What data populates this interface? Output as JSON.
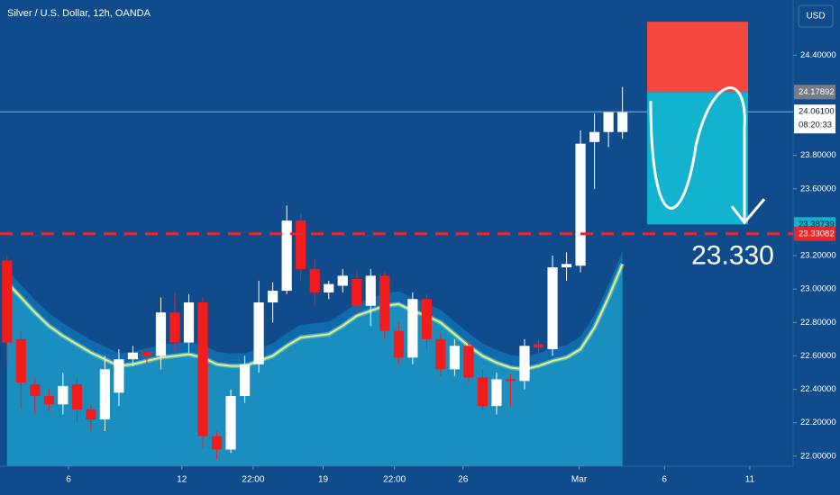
{
  "chart_data": {
    "type": "candlestick",
    "title": "Silver / U.S. Dollar, 12h, OANDA",
    "currency_button": "USD",
    "x": [
      0,
      1,
      2,
      3,
      4,
      5,
      6,
      7,
      8,
      9,
      10,
      11,
      12,
      13,
      14,
      15,
      16,
      17,
      18,
      19,
      20,
      21,
      22,
      23,
      24,
      25,
      26,
      27,
      28,
      29,
      30,
      31,
      32,
      33,
      34,
      35,
      36,
      37,
      38,
      39,
      40,
      41,
      42,
      43,
      44
    ],
    "open": [
      23.17,
      22.7,
      22.43,
      22.36,
      22.31,
      22.43,
      22.28,
      22.22,
      22.38,
      22.58,
      22.62,
      22.6,
      22.86,
      22.68,
      22.92,
      22.12,
      22.04,
      22.36,
      22.55,
      22.92,
      22.99,
      23.41,
      23.12,
      22.98,
      23.02,
      23.06,
      22.9,
      23.08,
      22.75,
      22.59,
      22.94,
      22.7,
      22.52,
      22.66,
      22.47,
      22.3,
      22.46,
      22.45,
      22.67,
      22.64,
      23.13,
      23.14,
      23.88,
      23.94,
      23.94
    ],
    "close": [
      22.68,
      22.44,
      22.36,
      22.31,
      22.42,
      22.28,
      22.22,
      22.52,
      22.58,
      22.62,
      22.6,
      22.86,
      22.68,
      22.92,
      22.12,
      22.04,
      22.36,
      22.55,
      22.92,
      22.99,
      23.41,
      23.12,
      22.98,
      23.03,
      23.08,
      22.9,
      23.08,
      22.75,
      22.59,
      22.94,
      22.7,
      22.52,
      22.66,
      22.47,
      22.3,
      22.46,
      22.45,
      22.66,
      22.65,
      23.13,
      23.15,
      23.87,
      23.94,
      24.06,
      24.06
    ],
    "high": [
      23.2,
      22.75,
      22.47,
      22.4,
      22.5,
      22.47,
      22.31,
      22.6,
      22.64,
      22.66,
      22.64,
      22.95,
      22.98,
      22.97,
      22.95,
      22.15,
      22.4,
      22.6,
      23.05,
      23.04,
      23.5,
      23.45,
      23.18,
      23.05,
      23.12,
      23.11,
      23.12,
      23.1,
      22.8,
      22.98,
      22.97,
      22.74,
      22.7,
      22.7,
      22.52,
      22.5,
      22.49,
      22.7,
      22.7,
      23.2,
      23.22,
      23.95,
      24.05,
      24.06,
      24.21
    ],
    "low": [
      22.55,
      22.28,
      22.25,
      22.27,
      22.25,
      22.2,
      22.15,
      22.15,
      22.3,
      22.54,
      22.55,
      22.52,
      22.62,
      22.62,
      22.05,
      21.98,
      22.02,
      22.32,
      22.5,
      22.8,
      22.97,
      23.05,
      22.9,
      22.94,
      22.98,
      22.85,
      22.78,
      22.7,
      22.55,
      22.55,
      22.64,
      22.48,
      22.48,
      22.44,
      22.28,
      22.25,
      22.3,
      22.4,
      22.55,
      22.6,
      23.05,
      23.1,
      23.6,
      23.85,
      23.9
    ],
    "ma": [
      23.04,
      22.95,
      22.86,
      22.78,
      22.72,
      22.67,
      22.62,
      22.58,
      22.54,
      22.55,
      22.57,
      22.59,
      22.6,
      22.61,
      22.59,
      22.55,
      22.54,
      22.54,
      22.57,
      22.6,
      22.66,
      22.71,
      22.72,
      22.73,
      22.78,
      22.84,
      22.87,
      22.9,
      22.91,
      22.87,
      22.84,
      22.8,
      22.73,
      22.66,
      22.6,
      22.56,
      22.53,
      22.52,
      22.54,
      22.57,
      22.59,
      22.64,
      22.77,
      22.95,
      23.15
    ],
    "up_color": "#ffffff",
    "down_color": "#f21c1c",
    "ma_color": "#e6f07a",
    "xlim": [
      -0.5,
      56.2
    ],
    "xticks": [
      {
        "value": 4.4,
        "label": "6"
      },
      {
        "value": 12.5,
        "label": "12"
      },
      {
        "value": 17.6,
        "label": "22:00"
      },
      {
        "value": 22.6,
        "label": "19"
      },
      {
        "value": 27.7,
        "label": "22:00"
      },
      {
        "value": 32.6,
        "label": "26"
      },
      {
        "value": 40.9,
        "label": "Mar"
      },
      {
        "value": 47,
        "label": "6"
      },
      {
        "value": 53.1,
        "label": "11"
      }
    ],
    "ylim": [
      21.94,
      24.73
    ],
    "yticks": [
      {
        "value": 22,
        "label": "22.00000"
      },
      {
        "value": 22.2,
        "label": "22.20000"
      },
      {
        "value": 22.4,
        "label": "22.40000"
      },
      {
        "value": 22.6,
        "label": "22.60000"
      },
      {
        "value": 22.8,
        "label": "22.80000"
      },
      {
        "value": 23,
        "label": "23.00000"
      },
      {
        "value": 23.2,
        "label": "23.20000"
      },
      {
        "value": 23.6,
        "label": "23.60000"
      },
      {
        "value": 23.8,
        "label": "23.80000"
      },
      {
        "value": 24.4,
        "label": "24.40000"
      }
    ],
    "price_tags": {
      "entry": {
        "value": 24.17892,
        "label": "24.17892"
      },
      "last": {
        "value": 24.061,
        "label": "24.06100",
        "countdown": "08:20:33"
      },
      "target": {
        "value": 23.38739,
        "label": "23.38739"
      },
      "support": {
        "value": 23.33082,
        "label": "23.33082"
      }
    },
    "stop_top": 24.6,
    "annotation": "23.330"
  }
}
